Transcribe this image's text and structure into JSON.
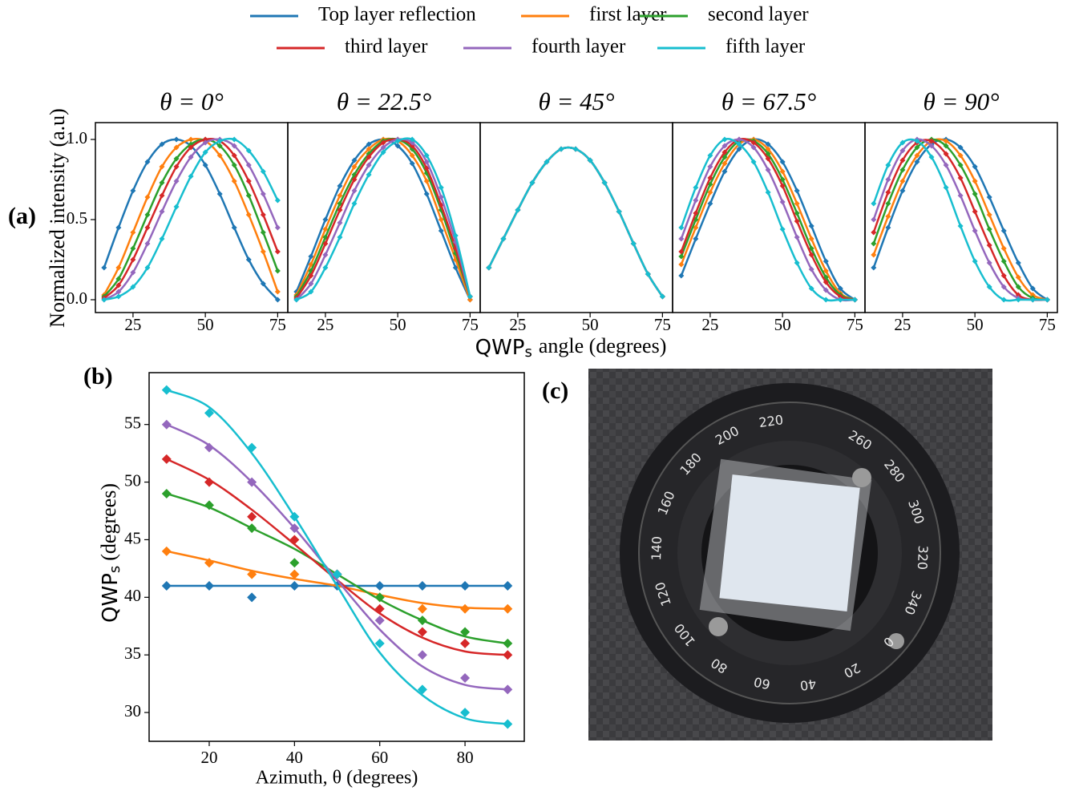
{
  "figure": {
    "panel_labels": [
      "(a)",
      "(b)",
      "(c)"
    ],
    "a_ylabel": "Normalized intensity (a.u)",
    "a_xlabel": {
      "main": "QWP",
      "sub": "s",
      "rest": "angle (degrees)"
    }
  },
  "chart_data": [
    {
      "type": "line",
      "title": "θ = 0°",
      "x": [
        15,
        20,
        25,
        30,
        35,
        40,
        45,
        50,
        55,
        60,
        65,
        70,
        75
      ],
      "xlim": [
        12,
        78.5
      ],
      "xticks": [
        25,
        50,
        75
      ],
      "ylim": [
        -0.08,
        1.105
      ],
      "yticks": [
        {
          "value": 0,
          "label": "0.0"
        },
        {
          "value": 0.5,
          "label": "0.5"
        },
        {
          "value": 1,
          "label": "1.0"
        }
      ],
      "series": [
        {
          "name": "Top layer reflection",
          "color": "#1f77b4",
          "values": [
            0.2,
            0.45,
            0.68,
            0.86,
            0.97,
            1.0,
            0.96,
            0.84,
            0.66,
            0.45,
            0.25,
            0.1,
            0.0
          ]
        },
        {
          "name": "first layer",
          "color": "#ff7f0e",
          "values": [
            0.03,
            0.2,
            0.42,
            0.64,
            0.83,
            0.95,
            1.0,
            0.99,
            0.9,
            0.74,
            0.53,
            0.3,
            0.05
          ]
        },
        {
          "name": "second layer",
          "color": "#2ca02c",
          "values": [
            0.02,
            0.13,
            0.32,
            0.53,
            0.73,
            0.88,
            0.97,
            1.0,
            0.96,
            0.84,
            0.65,
            0.42,
            0.18
          ]
        },
        {
          "name": "third layer",
          "color": "#d62728",
          "values": [
            0.01,
            0.09,
            0.25,
            0.45,
            0.65,
            0.83,
            0.95,
            1.0,
            0.99,
            0.9,
            0.74,
            0.53,
            0.3
          ]
        },
        {
          "name": "fourth layer",
          "color": "#9467bd",
          "values": [
            0.0,
            0.05,
            0.17,
            0.35,
            0.55,
            0.74,
            0.89,
            0.98,
            1.0,
            0.96,
            0.84,
            0.66,
            0.45
          ]
        },
        {
          "name": "fifth layer",
          "color": "#17becf",
          "values": [
            0.0,
            0.02,
            0.08,
            0.2,
            0.38,
            0.58,
            0.77,
            0.92,
            0.99,
            1.0,
            0.93,
            0.8,
            0.62
          ]
        }
      ]
    },
    {
      "type": "line",
      "title": "θ = 22.5°",
      "x": [
        15,
        20,
        25,
        30,
        35,
        40,
        45,
        50,
        55,
        60,
        65,
        70,
        75
      ],
      "xlim": [
        12,
        78.5
      ],
      "xticks": [
        25,
        50,
        75
      ],
      "ylim": [
        -0.08,
        1.105
      ],
      "series": [
        {
          "name": "Top layer reflection",
          "color": "#1f77b4",
          "values": [
            0.05,
            0.27,
            0.5,
            0.71,
            0.87,
            0.97,
            1.0,
            0.96,
            0.85,
            0.66,
            0.43,
            0.2,
            0.0
          ]
        },
        {
          "name": "first layer",
          "color": "#ff7f0e",
          "values": [
            0.03,
            0.22,
            0.44,
            0.65,
            0.83,
            0.94,
            1.0,
            0.99,
            0.9,
            0.74,
            0.5,
            0.25,
            0.0
          ]
        },
        {
          "name": "second layer",
          "color": "#2ca02c",
          "values": [
            0.02,
            0.18,
            0.39,
            0.6,
            0.78,
            0.91,
            0.99,
            1.0,
            0.94,
            0.79,
            0.56,
            0.29,
            0.02
          ]
        },
        {
          "name": "third layer",
          "color": "#d62728",
          "values": [
            0.01,
            0.15,
            0.35,
            0.56,
            0.75,
            0.89,
            0.98,
            1.0,
            0.96,
            0.82,
            0.59,
            0.32,
            0.02
          ]
        },
        {
          "name": "fourth layer",
          "color": "#9467bd",
          "values": [
            0.0,
            0.1,
            0.28,
            0.48,
            0.68,
            0.84,
            0.95,
            1.0,
            0.98,
            0.86,
            0.64,
            0.36,
            0.02
          ]
        },
        {
          "name": "fifth layer",
          "color": "#17becf",
          "values": [
            0.0,
            0.05,
            0.2,
            0.39,
            0.6,
            0.78,
            0.92,
            0.99,
            1.0,
            0.9,
            0.7,
            0.4,
            0.02
          ]
        }
      ]
    },
    {
      "type": "line",
      "title": "θ = 45°",
      "x": [
        15,
        20,
        25,
        30,
        35,
        40,
        45,
        50,
        55,
        60,
        65,
        70,
        75
      ],
      "xlim": [
        12,
        78.5
      ],
      "xticks": [
        25,
        50,
        75
      ],
      "ylim": [
        -0.08,
        1.105
      ],
      "series": [
        {
          "name": "Top layer reflection",
          "color": "#1f77b4",
          "values": [
            0.2,
            0.38,
            0.56,
            0.73,
            0.86,
            0.94,
            0.94,
            0.87,
            0.73,
            0.55,
            0.35,
            0.16,
            0.02
          ]
        },
        {
          "name": "first layer",
          "color": "#ff7f0e",
          "values": [
            0.2,
            0.38,
            0.56,
            0.73,
            0.86,
            0.94,
            0.94,
            0.87,
            0.73,
            0.55,
            0.35,
            0.16,
            0.02
          ]
        },
        {
          "name": "second layer",
          "color": "#2ca02c",
          "values": [
            0.2,
            0.38,
            0.56,
            0.73,
            0.86,
            0.94,
            0.94,
            0.87,
            0.73,
            0.55,
            0.35,
            0.16,
            0.02
          ]
        },
        {
          "name": "third layer",
          "color": "#d62728",
          "values": [
            0.2,
            0.38,
            0.56,
            0.73,
            0.86,
            0.94,
            0.94,
            0.87,
            0.73,
            0.55,
            0.35,
            0.16,
            0.02
          ]
        },
        {
          "name": "fourth layer",
          "color": "#9467bd",
          "values": [
            0.2,
            0.38,
            0.56,
            0.73,
            0.86,
            0.94,
            0.94,
            0.87,
            0.73,
            0.55,
            0.35,
            0.16,
            0.02
          ]
        },
        {
          "name": "fifth layer",
          "color": "#17becf",
          "values": [
            0.2,
            0.38,
            0.56,
            0.73,
            0.86,
            0.94,
            0.94,
            0.87,
            0.73,
            0.55,
            0.35,
            0.16,
            0.02
          ]
        }
      ]
    },
    {
      "type": "line",
      "title": "θ = 67.5°",
      "x": [
        15,
        20,
        25,
        30,
        35,
        40,
        45,
        50,
        55,
        60,
        65,
        70,
        75
      ],
      "xlim": [
        12,
        78.5
      ],
      "xticks": [
        25,
        50,
        75
      ],
      "ylim": [
        -0.08,
        1.105
      ],
      "series": [
        {
          "name": "Top layer reflection",
          "color": "#1f77b4",
          "values": [
            0.15,
            0.38,
            0.6,
            0.8,
            0.94,
            1.0,
            0.97,
            0.86,
            0.68,
            0.46,
            0.24,
            0.07,
            0.0
          ]
        },
        {
          "name": "first layer",
          "color": "#ff7f0e",
          "values": [
            0.22,
            0.45,
            0.67,
            0.85,
            0.97,
            1.0,
            0.94,
            0.8,
            0.6,
            0.38,
            0.18,
            0.04,
            0.0
          ]
        },
        {
          "name": "second layer",
          "color": "#2ca02c",
          "values": [
            0.27,
            0.5,
            0.72,
            0.89,
            0.99,
            0.99,
            0.91,
            0.75,
            0.54,
            0.32,
            0.14,
            0.03,
            0.0
          ]
        },
        {
          "name": "third layer",
          "color": "#d62728",
          "values": [
            0.3,
            0.54,
            0.76,
            0.92,
            1.0,
            0.98,
            0.88,
            0.71,
            0.49,
            0.28,
            0.11,
            0.02,
            0.0
          ]
        },
        {
          "name": "fourth layer",
          "color": "#9467bd",
          "values": [
            0.38,
            0.62,
            0.83,
            0.96,
            1.0,
            0.95,
            0.81,
            0.61,
            0.39,
            0.19,
            0.06,
            0.0,
            0.0
          ]
        },
        {
          "name": "fifth layer",
          "color": "#17becf",
          "values": [
            0.45,
            0.7,
            0.9,
            1.0,
            0.97,
            0.86,
            0.67,
            0.44,
            0.23,
            0.07,
            0.0,
            0.0,
            0.0
          ]
        }
      ]
    },
    {
      "type": "line",
      "title": "θ = 90°",
      "x": [
        15,
        20,
        25,
        30,
        35,
        40,
        45,
        50,
        55,
        60,
        65,
        70,
        75
      ],
      "xlim": [
        12,
        78.5
      ],
      "xticks": [
        25,
        50,
        75
      ],
      "ylim": [
        -0.08,
        1.105
      ],
      "series": [
        {
          "name": "Top layer reflection",
          "color": "#1f77b4",
          "values": [
            0.2,
            0.45,
            0.68,
            0.86,
            0.97,
            1.0,
            0.95,
            0.83,
            0.64,
            0.43,
            0.23,
            0.07,
            0.0
          ]
        },
        {
          "name": "first layer",
          "color": "#ff7f0e",
          "values": [
            0.28,
            0.52,
            0.74,
            0.9,
            0.99,
            0.99,
            0.9,
            0.74,
            0.53,
            0.32,
            0.14,
            0.03,
            0.0
          ]
        },
        {
          "name": "second layer",
          "color": "#2ca02c",
          "values": [
            0.35,
            0.6,
            0.81,
            0.95,
            1.0,
            0.96,
            0.84,
            0.66,
            0.44,
            0.24,
            0.08,
            0.01,
            0.0
          ]
        },
        {
          "name": "third layer",
          "color": "#d62728",
          "values": [
            0.42,
            0.67,
            0.87,
            0.98,
            0.99,
            0.91,
            0.76,
            0.55,
            0.34,
            0.15,
            0.03,
            0.0,
            0.0
          ]
        },
        {
          "name": "fourth layer",
          "color": "#9467bd",
          "values": [
            0.5,
            0.75,
            0.93,
            1.0,
            0.96,
            0.84,
            0.65,
            0.43,
            0.23,
            0.08,
            0.01,
            0.0,
            0.0
          ]
        },
        {
          "name": "fifth layer",
          "color": "#17becf",
          "values": [
            0.6,
            0.84,
            0.98,
            0.99,
            0.89,
            0.7,
            0.46,
            0.24,
            0.08,
            0.0,
            0.0,
            0.0,
            0.0
          ]
        }
      ]
    },
    {
      "type": "scatter",
      "xlabel": "Azimuth, θ (degrees)",
      "ylabel": {
        "main": "QWP",
        "sub": "s",
        "rest": "(degrees)"
      },
      "x": [
        10,
        20,
        30,
        40,
        50,
        60,
        70,
        80,
        90
      ],
      "xlim": [
        5.9,
        93.9
      ],
      "xticks": [
        20,
        40,
        60,
        80
      ],
      "ylim": [
        27.5,
        59.5
      ],
      "yticks": [
        30,
        35,
        40,
        45,
        50,
        55
      ],
      "series": [
        {
          "name": "Top layer reflection",
          "color": "#1f77b4",
          "values": [
            41,
            41,
            40,
            41,
            41,
            41,
            41,
            41,
            41
          ],
          "fit": [
            41,
            41,
            41,
            41,
            41,
            41,
            41,
            41,
            41
          ]
        },
        {
          "name": "first layer",
          "color": "#ff7f0e",
          "values": [
            44,
            43,
            42,
            42,
            42,
            40,
            39,
            39,
            39
          ],
          "fit": [
            44,
            43.2,
            42.3,
            41.6,
            41,
            40.2,
            39.5,
            39.1,
            39
          ]
        },
        {
          "name": "second layer",
          "color": "#2ca02c",
          "values": [
            49,
            48,
            46,
            43,
            42,
            40,
            38,
            37,
            36
          ],
          "fit": [
            49,
            47.8,
            46,
            44.2,
            42,
            39.8,
            38,
            36.6,
            36
          ]
        },
        {
          "name": "third layer",
          "color": "#d62728",
          "values": [
            52,
            50,
            47,
            45,
            42,
            39,
            37,
            36,
            35
          ],
          "fit": [
            52,
            50.2,
            47.6,
            44.6,
            41.5,
            38.6,
            36.5,
            35.3,
            35
          ]
        },
        {
          "name": "fourth layer",
          "color": "#9467bd",
          "values": [
            55,
            53,
            50,
            46,
            42,
            38,
            35,
            33,
            32
          ],
          "fit": [
            55,
            53.2,
            50,
            46,
            41.5,
            37.2,
            34,
            32.4,
            32
          ]
        },
        {
          "name": "fifth layer",
          "color": "#17becf",
          "values": [
            58,
            56,
            53,
            47,
            42,
            36,
            32,
            30,
            29
          ],
          "fit": [
            58,
            56.5,
            52.5,
            47,
            41,
            35.2,
            31.5,
            29.5,
            29
          ]
        }
      ]
    }
  ],
  "photo": {
    "dial_labels": [
      0,
      20,
      40,
      60,
      80,
      100,
      120,
      140,
      160,
      180,
      200,
      220,
      260,
      280,
      300,
      320,
      340
    ]
  }
}
